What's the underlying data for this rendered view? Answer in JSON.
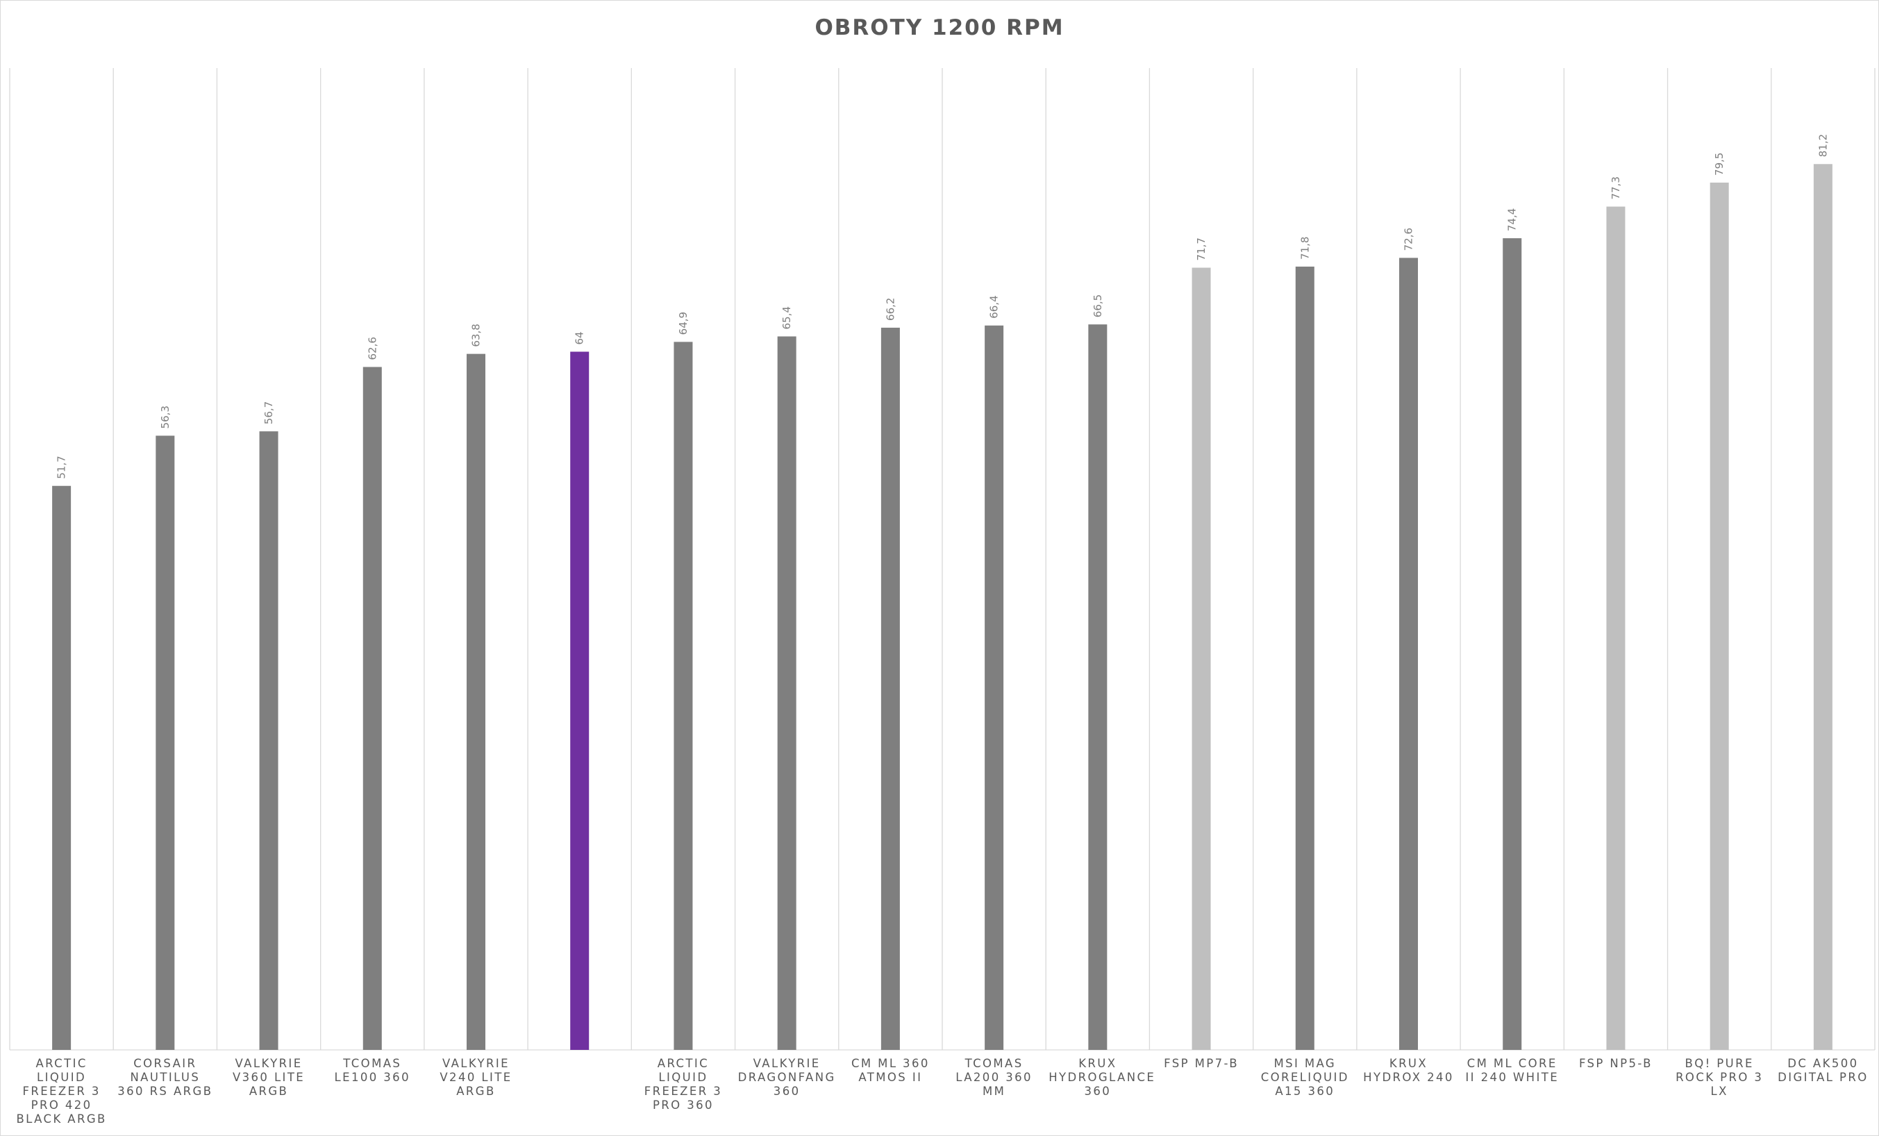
{
  "chart_data": {
    "type": "bar",
    "title": "OBROTY 1200 RPM",
    "xlabel": "",
    "ylabel": "",
    "ylim": [
      0,
      90
    ],
    "grid": "vertical category separators",
    "legend": "none",
    "categories": [
      "ARCTIC LIQUID FREEZER 3 PRO 420 BLACK ARGB",
      "CORSAIR NAUTILUS 360 RS ARGB",
      "VALKYRIE V360 LITE ARGB",
      "TCOMAS LE100 360",
      "VALKYRIE V240 LITE ARGB",
      "",
      "ARCTIC LIQUID FREEZER 3 PRO 360",
      "VALKYRIE DRAGONFANG 360",
      "CM ML 360 ATMOS II",
      "TCOMAS LA200 360 MM",
      "KRUX HYDROGLANCE 360",
      "FSP MP7-B",
      "MSI MAG CORELIQUID A15 360",
      "KRUX HYDROX 240",
      "CM ML CORE II 240 WHITE",
      "FSP NP5-B",
      "BQ! PURE ROCK PRO 3 LX",
      "DC AK500 DIGITAL PRO"
    ],
    "values": [
      51.7,
      56.3,
      56.7,
      62.6,
      63.8,
      64,
      64.9,
      65.4,
      66.2,
      66.4,
      66.5,
      71.7,
      71.8,
      72.6,
      74.4,
      77.3,
      79.5,
      81.2
    ],
    "data_labels": [
      "51,7",
      "56,3",
      "56,7",
      "62,6",
      "63,8",
      "64",
      "64,9",
      "65,4",
      "66,2",
      "66,4",
      "66,5",
      "71,7",
      "71,8",
      "72,6",
      "74,4",
      "77,3",
      "79,5",
      "81,2"
    ],
    "bar_colors": [
      "#7f7f7f",
      "#7f7f7f",
      "#7f7f7f",
      "#7f7f7f",
      "#7f7f7f",
      "#7030a0",
      "#7f7f7f",
      "#7f7f7f",
      "#7f7f7f",
      "#7f7f7f",
      "#7f7f7f",
      "#bfbfbf",
      "#7f7f7f",
      "#7f7f7f",
      "#7f7f7f",
      "#bfbfbf",
      "#bfbfbf",
      "#bfbfbf"
    ],
    "colors": {
      "default_bar": "#7f7f7f",
      "highlight_bar": "#7030a0",
      "light_bar": "#bfbfbf",
      "gridline": "#d9d9d9",
      "text": "#595959",
      "data_label": "#7f7f7f"
    }
  }
}
